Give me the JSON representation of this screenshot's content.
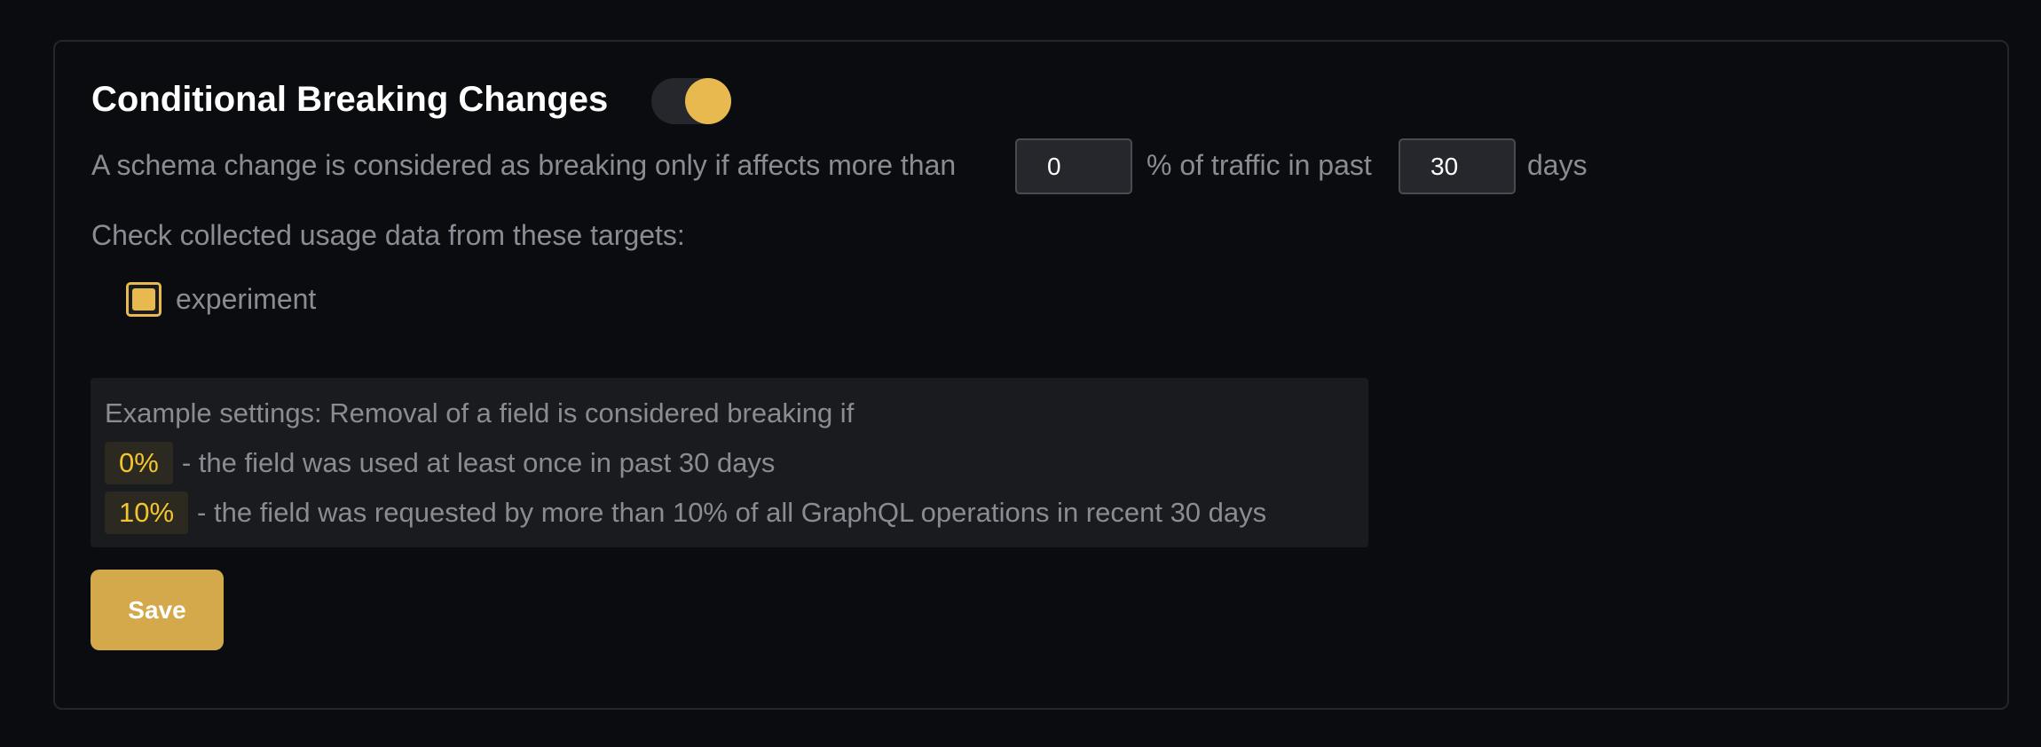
{
  "title": "Conditional Breaking Changes",
  "toggle": {
    "on": true
  },
  "description": {
    "before": "A schema change is considered as breaking only if affects more than",
    "percent_value": "0",
    "middle": "% of traffic in past",
    "days_value": "30",
    "after": "days"
  },
  "targets": {
    "label": "Check collected usage data from these targets:",
    "items": [
      {
        "label": "experiment",
        "checked": true
      }
    ]
  },
  "example": {
    "heading": "Example settings: Removal of a field is considered breaking if",
    "rows": [
      {
        "badge": "0%",
        "text": "- the field was used at least once in past 30 days"
      },
      {
        "badge": "10%",
        "text": "- the field was requested by more than 10% of all GraphQL operations in recent 30 days"
      }
    ]
  },
  "save_label": "Save",
  "colors": {
    "accent": "#e8b94f",
    "button": "#d4a94c",
    "background": "#0b0c10"
  }
}
